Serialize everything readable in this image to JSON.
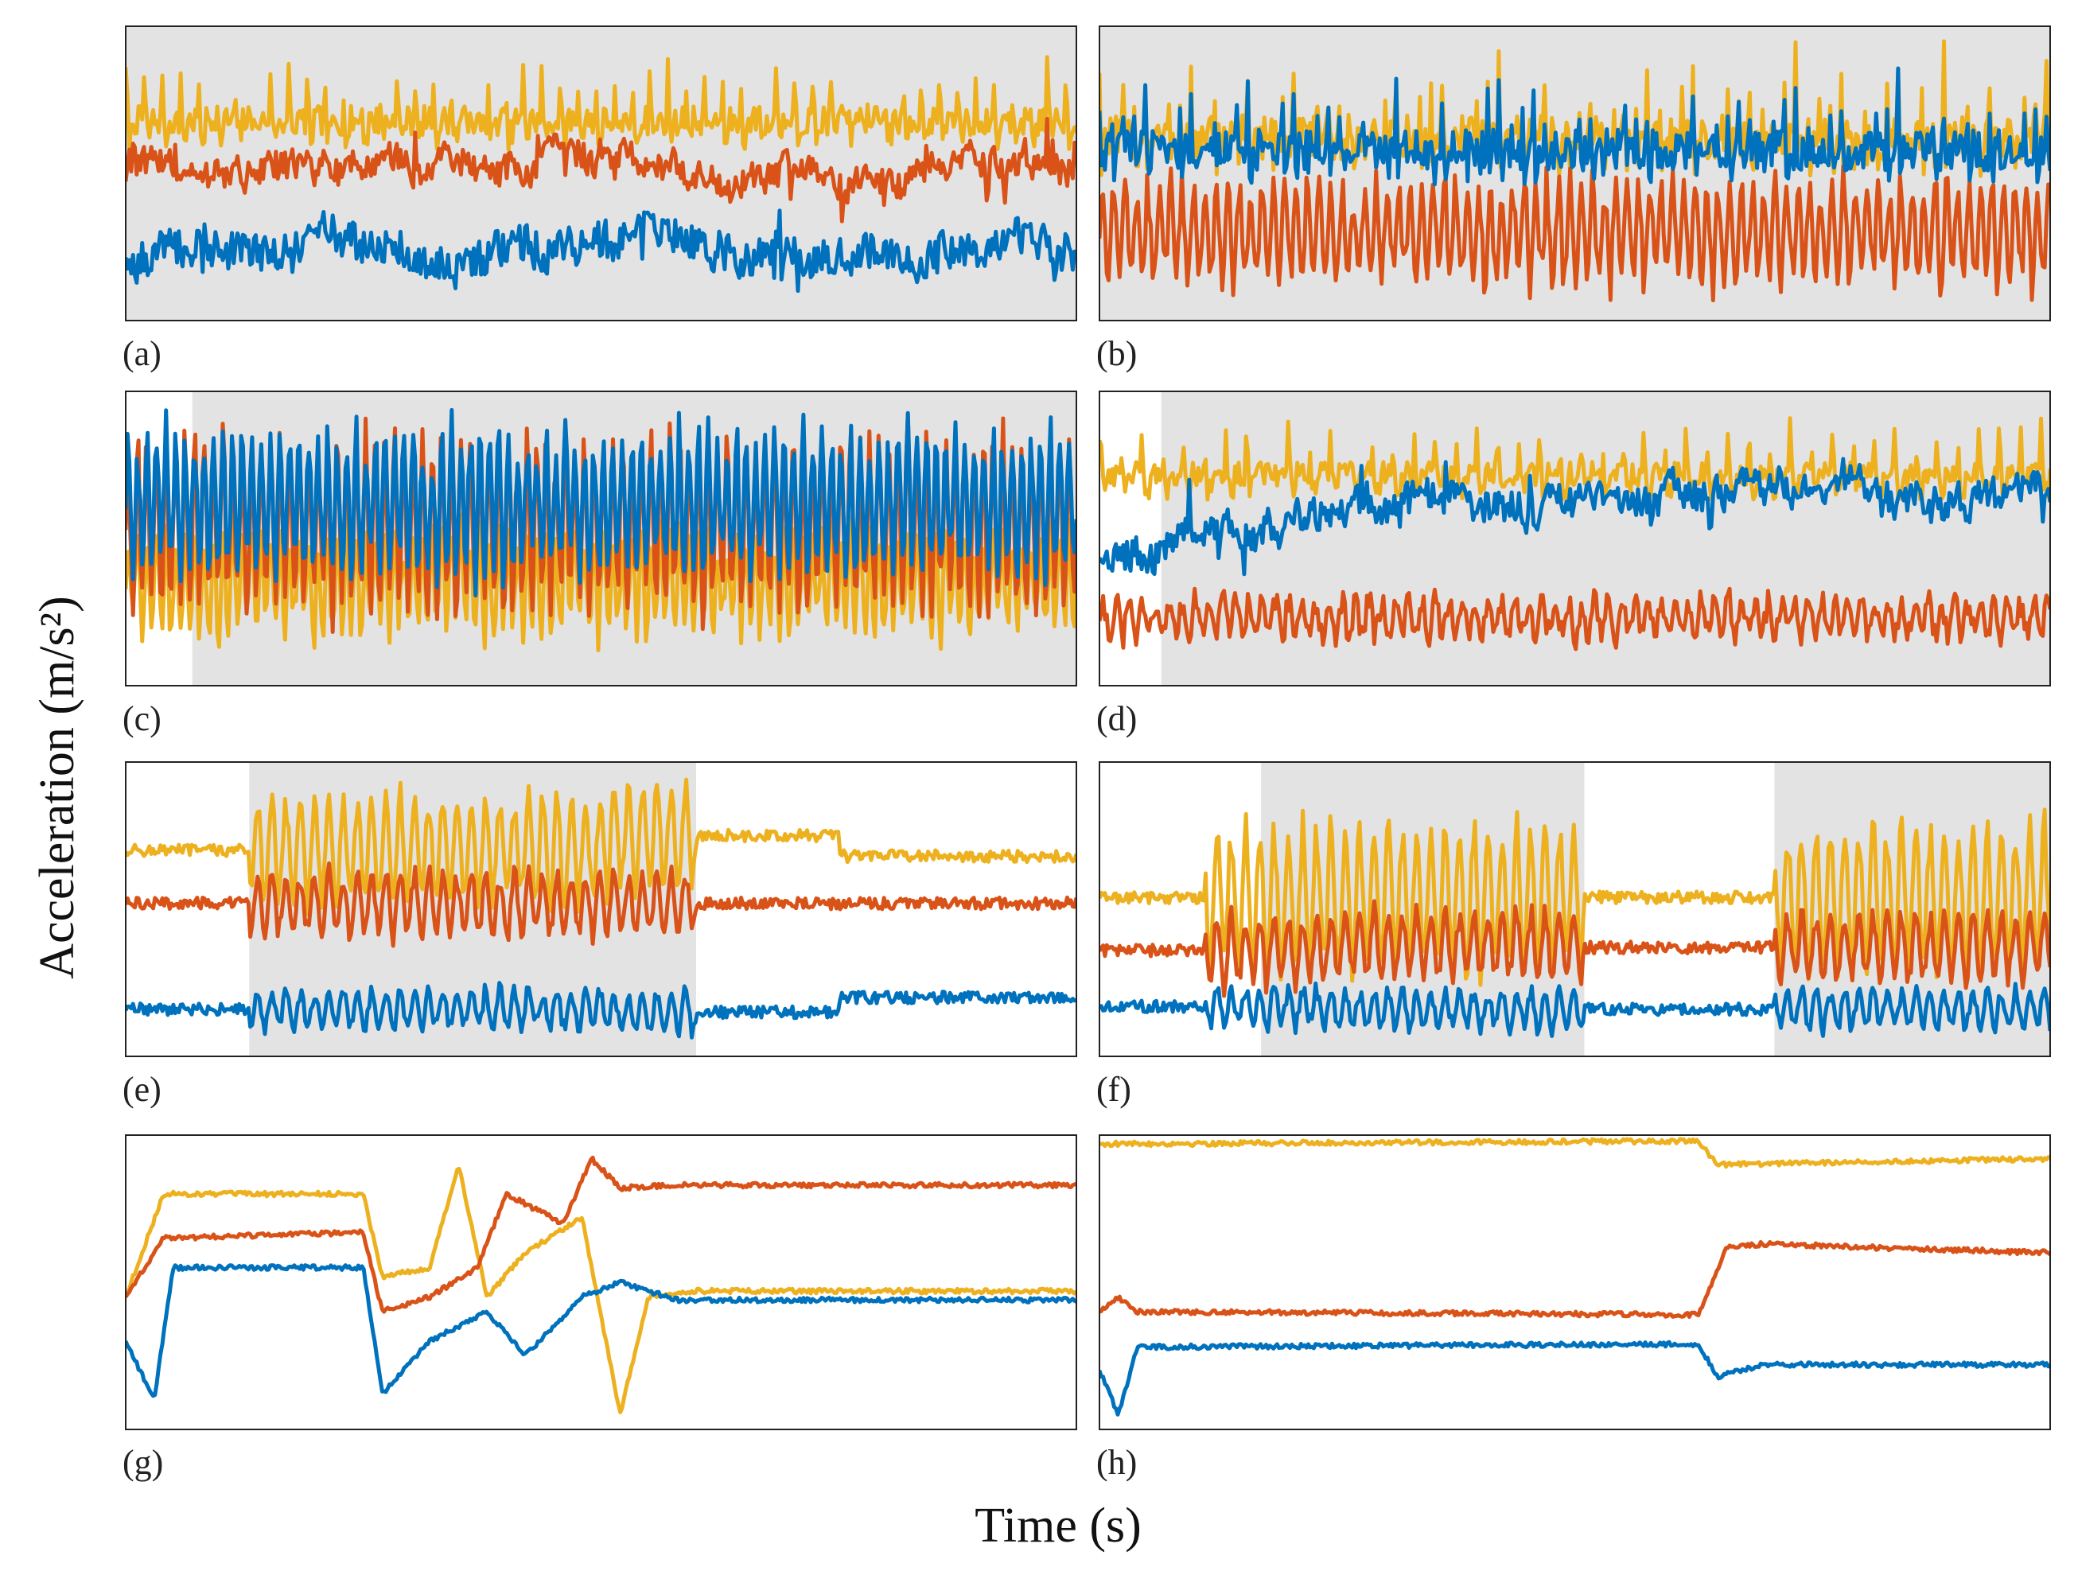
{
  "figure": {
    "xlabel": "Time (s)",
    "ylabel": "Acceleration (m/s²)"
  },
  "chart_data": [
    {
      "panel": "(a)",
      "type": "line",
      "grid": false,
      "shaded_regions": [
        [
          0,
          100
        ]
      ],
      "series": [
        {
          "color": "#EDB120",
          "kind": "spiky",
          "level": 0.68,
          "spike": 0.18,
          "noise": 0.05,
          "period": 1.9
        },
        {
          "color": "#D95319",
          "kind": "noisy",
          "level": 0.5,
          "noise": 0.06
        },
        {
          "color": "#0072BD",
          "kind": "noisy",
          "level": 0.25,
          "noise": 0.09
        }
      ]
    },
    {
      "panel": "(b)",
      "type": "line",
      "grid": false,
      "shaded_regions": [
        [
          0,
          100
        ]
      ],
      "series": [
        {
          "color": "#EDB120",
          "kind": "spiky",
          "level": 0.62,
          "spike": 0.25,
          "noise": 0.08,
          "period": 1.2
        },
        {
          "color": "#D95319",
          "kind": "osc",
          "level": 0.3,
          "amp": 0.18,
          "noise": 0.05,
          "period": 1.2
        },
        {
          "color": "#0072BD",
          "kind": "spiky",
          "level": 0.58,
          "spike": 0.2,
          "noise": 0.07,
          "period": 1.2
        }
      ]
    },
    {
      "panel": "(c)",
      "type": "line",
      "grid": false,
      "shaded_regions": [
        [
          7,
          100
        ]
      ],
      "series": [
        {
          "color": "#EDB120",
          "kind": "osc",
          "level": 0.35,
          "amp": 0.18,
          "noise": 0.06,
          "period": 1.0
        },
        {
          "color": "#D95319",
          "kind": "osc",
          "level": 0.55,
          "amp": 0.3,
          "noise": 0.06,
          "period": 1.0
        },
        {
          "color": "#0072BD",
          "kind": "osc",
          "level": 0.62,
          "amp": 0.25,
          "noise": 0.06,
          "period": 1.0
        }
      ]
    },
    {
      "panel": "(d)",
      "type": "line",
      "grid": false,
      "shaded_regions": [
        [
          6.5,
          100
        ]
      ],
      "series": [
        {
          "color": "#EDB120",
          "kind": "spiky",
          "level": 0.72,
          "spike": 0.16,
          "noise": 0.04,
          "period": 2.2
        },
        {
          "color": "#D95319",
          "kind": "osc",
          "level": 0.23,
          "amp": 0.07,
          "noise": 0.04,
          "period": 1.4
        },
        {
          "color": "#0072BD",
          "kind": "noisy",
          "level": 0.6,
          "noise": 0.07,
          "ramp": [
            0.45,
            0.62
          ]
        }
      ]
    },
    {
      "panel": "(e)",
      "type": "line",
      "grid": false,
      "shaded_regions": [
        [
          13,
          60
        ]
      ],
      "series": [
        {
          "color": "#EDB120",
          "kind": "segment",
          "levels": [
            0.7,
            0.7,
            0.75,
            0.68
          ],
          "active": [
            13,
            60
          ],
          "spike": 0.22,
          "noise": 0.02
        },
        {
          "color": "#D95319",
          "kind": "segment",
          "levels": [
            0.52,
            0.52,
            0.52,
            0.52
          ],
          "active": [
            13,
            60
          ],
          "spike": 0.13,
          "noise": 0.02
        },
        {
          "color": "#0072BD",
          "kind": "segment",
          "levels": [
            0.16,
            0.16,
            0.15,
            0.2
          ],
          "active": [
            13,
            60
          ],
          "spike": 0.08,
          "noise": 0.02
        }
      ]
    },
    {
      "panel": "(f)",
      "type": "line",
      "grid": false,
      "shaded_regions": [
        [
          17,
          51
        ],
        [
          71,
          100
        ]
      ],
      "series": [
        {
          "color": "#EDB120",
          "kind": "segment",
          "levels": [
            0.54,
            0.54,
            0.54,
            0.54
          ],
          "active": [
            11,
            51,
            71,
            100
          ],
          "spike": 0.3,
          "noise": 0.02
        },
        {
          "color": "#D95319",
          "kind": "segment",
          "levels": [
            0.36,
            0.38,
            0.37,
            0.37
          ],
          "active": [
            11,
            51,
            71,
            100
          ],
          "spike": 0.14,
          "noise": 0.02
        },
        {
          "color": "#0072BD",
          "kind": "segment",
          "levels": [
            0.17,
            0.16,
            0.16,
            0.16
          ],
          "active": [
            11,
            51,
            71,
            100
          ],
          "spike": 0.08,
          "noise": 0.02
        }
      ]
    },
    {
      "panel": "(g)",
      "type": "line",
      "grid": false,
      "shaded_regions": [],
      "series": [
        {
          "color": "#EDB120",
          "kind": "steps",
          "points": [
            [
              0,
              0.45
            ],
            [
              4,
              0.8
            ],
            [
              25,
              0.8
            ],
            [
              27,
              0.52
            ],
            [
              32,
              0.55
            ],
            [
              35,
              0.9
            ],
            [
              38,
              0.45
            ],
            [
              42,
              0.6
            ],
            [
              48,
              0.72
            ],
            [
              52,
              0.05
            ],
            [
              55,
              0.45
            ],
            [
              60,
              0.47
            ],
            [
              100,
              0.47
            ]
          ]
        },
        {
          "color": "#D95319",
          "kind": "steps",
          "points": [
            [
              0,
              0.45
            ],
            [
              4,
              0.65
            ],
            [
              25,
              0.67
            ],
            [
              27,
              0.4
            ],
            [
              32,
              0.45
            ],
            [
              37,
              0.55
            ],
            [
              40,
              0.8
            ],
            [
              46,
              0.7
            ],
            [
              49,
              0.92
            ],
            [
              52,
              0.82
            ],
            [
              58,
              0.83
            ],
            [
              100,
              0.83
            ]
          ]
        },
        {
          "color": "#0072BD",
          "kind": "steps",
          "points": [
            [
              0,
              0.3
            ],
            [
              3,
              0.1
            ],
            [
              5,
              0.55
            ],
            [
              25,
              0.55
            ],
            [
              27,
              0.12
            ],
            [
              32,
              0.3
            ],
            [
              38,
              0.4
            ],
            [
              42,
              0.25
            ],
            [
              48,
              0.45
            ],
            [
              52,
              0.5
            ],
            [
              58,
              0.44
            ],
            [
              100,
              0.44
            ]
          ]
        }
      ]
    },
    {
      "panel": "(h)",
      "type": "line",
      "grid": false,
      "shaded_regions": [],
      "series": [
        {
          "color": "#EDB120",
          "kind": "steps",
          "points": [
            [
              0,
              0.97
            ],
            [
              63,
              0.98
            ],
            [
              65,
              0.9
            ],
            [
              100,
              0.92
            ]
          ]
        },
        {
          "color": "#D95319",
          "kind": "steps",
          "points": [
            [
              0,
              0.4
            ],
            [
              2,
              0.45
            ],
            [
              4,
              0.4
            ],
            [
              63,
              0.39
            ],
            [
              66,
              0.62
            ],
            [
              70,
              0.63
            ],
            [
              100,
              0.6
            ]
          ]
        },
        {
          "color": "#0072BD",
          "kind": "steps",
          "points": [
            [
              0,
              0.2
            ],
            [
              2,
              0.05
            ],
            [
              4,
              0.28
            ],
            [
              63,
              0.29
            ],
            [
              65,
              0.18
            ],
            [
              70,
              0.22
            ],
            [
              100,
              0.22
            ]
          ]
        }
      ]
    }
  ]
}
